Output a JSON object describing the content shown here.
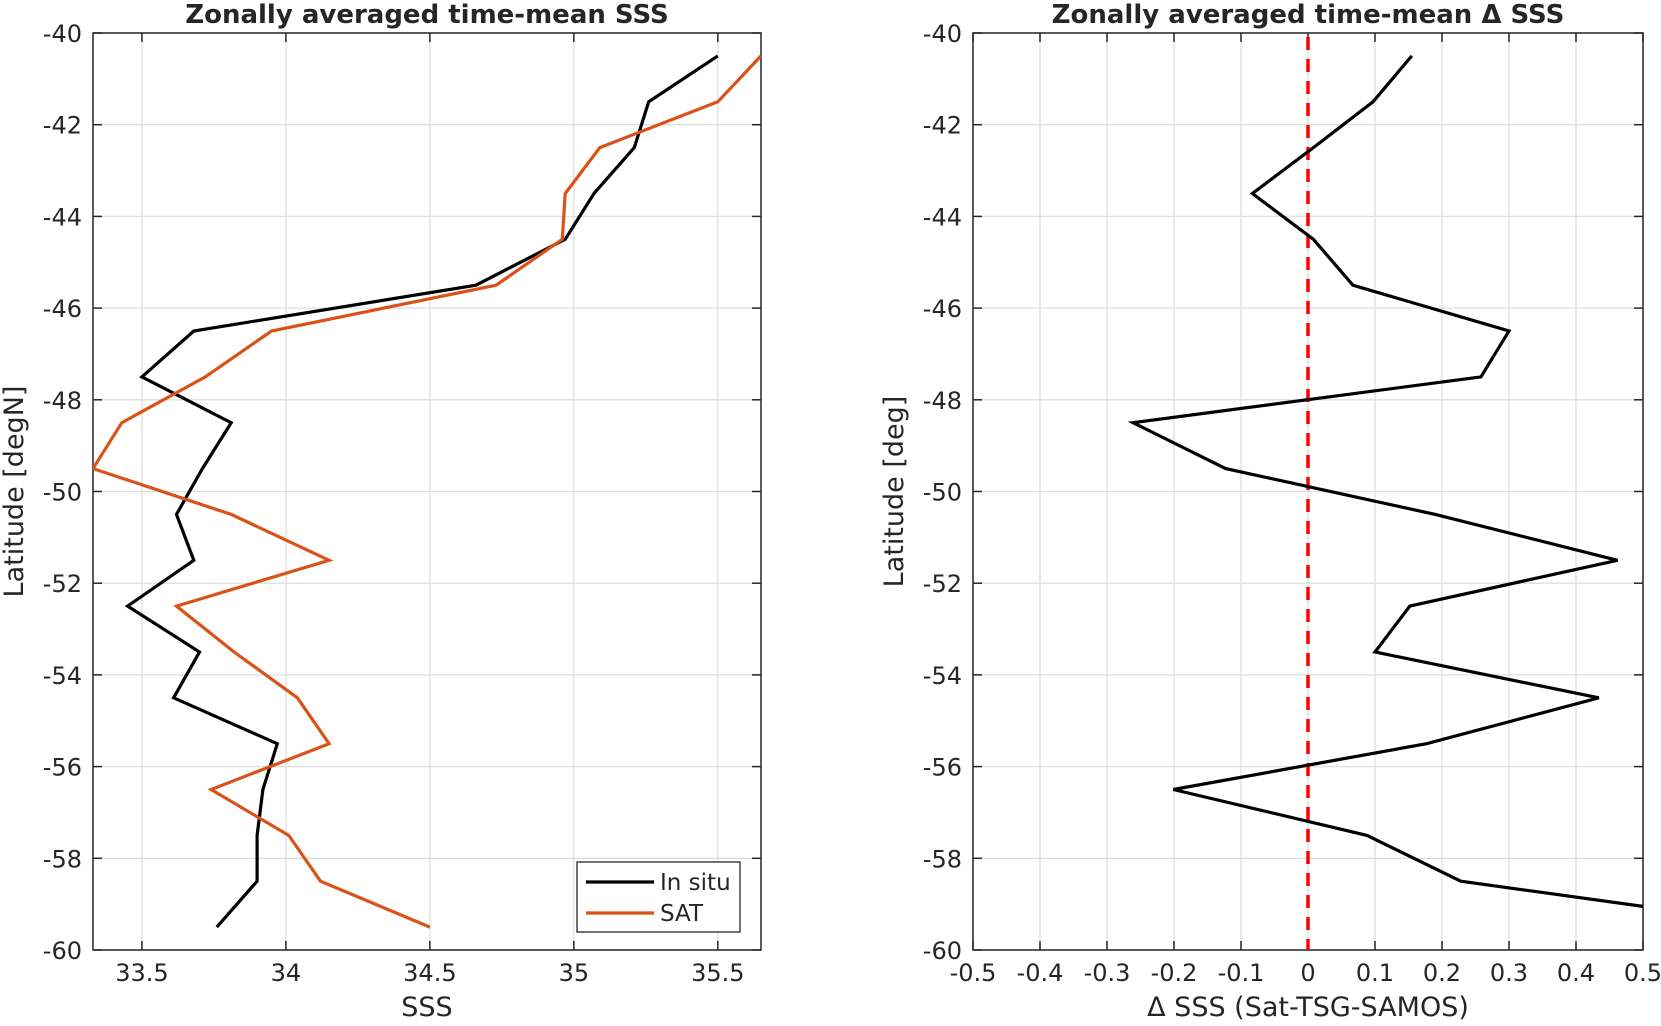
{
  "chart_data": [
    {
      "type": "line",
      "title": "Zonally averaged time-mean SSS",
      "xlabel": "SSS",
      "ylabel": "Latitude [degN]",
      "xlim": [
        33.33,
        35.65
      ],
      "ylim": [
        -60,
        -40
      ],
      "xticks": [
        "33.5",
        "34",
        "34.5",
        "35",
        "35.5"
      ],
      "yticks": [
        "-40",
        "-42",
        "-44",
        "-46",
        "-48",
        "-50",
        "-52",
        "-54",
        "-56",
        "-58",
        "-60"
      ],
      "grid": true,
      "legend": "bottom-right",
      "series": [
        {
          "name": "In situ",
          "color": "#000000",
          "x": [
            35.5,
            35.26,
            35.21,
            35.07,
            34.97,
            34.66,
            33.68,
            33.5,
            33.81,
            33.71,
            33.62,
            33.68,
            33.45,
            33.7,
            33.61,
            33.97,
            33.92,
            33.9,
            33.9,
            33.76
          ],
          "y": [
            -40.5,
            -41.5,
            -42.5,
            -43.5,
            -44.5,
            -45.5,
            -46.5,
            -47.5,
            -48.5,
            -49.5,
            -50.5,
            -51.5,
            -52.5,
            -53.5,
            -54.5,
            -55.5,
            -56.5,
            -57.5,
            -58.5,
            -59.5
          ]
        },
        {
          "name": "SAT",
          "color": "#D95319",
          "x": [
            35.65,
            35.5,
            35.09,
            34.97,
            34.96,
            34.73,
            33.95,
            33.72,
            33.43,
            33.33,
            33.81,
            34.15,
            33.62,
            33.82,
            34.04,
            34.15,
            33.74,
            34.01,
            34.12,
            34.5
          ],
          "y": [
            -40.5,
            -41.5,
            -42.5,
            -43.5,
            -44.5,
            -45.5,
            -46.5,
            -47.5,
            -48.5,
            -49.5,
            -50.5,
            -51.5,
            -52.5,
            -53.5,
            -54.5,
            -55.5,
            -56.5,
            -57.5,
            -58.5,
            -59.5
          ]
        }
      ]
    },
    {
      "type": "line",
      "title": "Zonally averaged time-mean Δ SSS",
      "xlabel": "Δ SSS (Sat-TSG-SAMOS)",
      "ylabel": "Latitude [deg]",
      "xlim": [
        -0.5,
        0.5
      ],
      "ylim": [
        -60,
        -40
      ],
      "xticks": [
        "-0.5",
        "-0.4",
        "-0.3",
        "-0.2",
        "-0.1",
        "0",
        "0.1",
        "0.2",
        "0.3",
        "0.4",
        "0.5"
      ],
      "yticks": [
        "-40",
        "-42",
        "-44",
        "-46",
        "-48",
        "-50",
        "-52",
        "-54",
        "-56",
        "-58",
        "-60"
      ],
      "grid": true,
      "reference_line": {
        "x": 0,
        "color": "#FF0000",
        "style": "dashed"
      },
      "series": [
        {
          "color": "#000000",
          "x": [
            0.155,
            0.097,
            0.008,
            -0.083,
            0.008,
            0.067,
            0.3,
            0.258,
            -0.261,
            -0.123,
            0.19,
            0.462,
            0.152,
            0.1,
            0.434,
            0.177,
            -0.201,
            0.088,
            0.228,
            0.5
          ],
          "y": [
            -40.5,
            -41.5,
            -42.5,
            -43.5,
            -44.5,
            -45.5,
            -46.5,
            -47.5,
            -48.5,
            -49.5,
            -50.5,
            -51.5,
            -52.5,
            -53.5,
            -54.5,
            -55.5,
            -56.5,
            -57.5,
            -58.5,
            -59.05
          ]
        }
      ]
    }
  ]
}
